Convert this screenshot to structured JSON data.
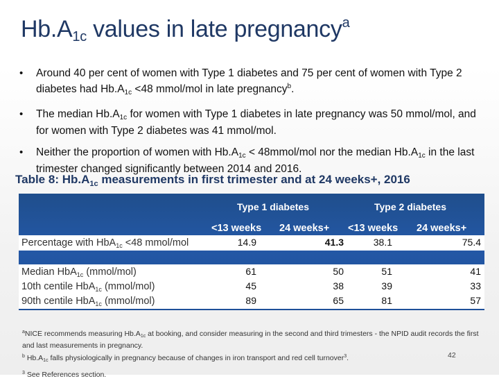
{
  "title": {
    "main": "Hb.A",
    "sub": "1c",
    "rest": " values in late pregnancy",
    "sup": "a"
  },
  "bullets": [
    {
      "parts": [
        "Around 40 per cent of women with Type 1 diabetes and 75 per cent of women with Type 2 diabetes had Hb.A",
        "1c",
        " <48 mmol/mol in late pregnancy",
        "b",
        "."
      ]
    },
    {
      "parts": [
        "The median Hb.A",
        "1c",
        " for women with Type 1 diabetes in late pregnancy was 50 mmol/mol, and for women with Type 2 diabetes was 41 mmol/mol."
      ]
    },
    {
      "parts": [
        "Neither the proportion of women with Hb.A",
        "1c",
        " < 48mmol/mol nor the median Hb.A",
        "1c",
        " in the last trimester changed significantly between 2014 and 2016."
      ]
    }
  ],
  "table_title": {
    "pre": "Table 8: Hb.A",
    "sub": "1c",
    "post": " measurements in first trimester and at 24 weeks+, 2016"
  },
  "table": {
    "group_headers": [
      "Type 1 diabetes",
      "Type 2 diabetes"
    ],
    "col_headers": [
      "<13 weeks",
      "24 weeks+",
      "<13 weeks",
      "24 weeks+"
    ],
    "rows": [
      {
        "label_pre": "Percentage with HbA",
        "label_sub": "1c",
        "label_post": " <48 mmol/mol",
        "values": [
          "14.9",
          "41.3",
          "38.1",
          "75.4"
        ]
      },
      {
        "label_pre": "Median HbA",
        "label_sub": "1c",
        "label_post": " (mmol/mol)",
        "values": [
          "61",
          "50",
          "51",
          "41"
        ]
      },
      {
        "label_pre": "10th centile HbA",
        "label_sub": "1c",
        "label_post": " (mmol/mol)",
        "values": [
          "45",
          "38",
          "39",
          "33"
        ]
      },
      {
        "label_pre": "90th centile HbA",
        "label_sub": "1c",
        "label_post": " (mmol/mol)",
        "values": [
          "89",
          "65",
          "81",
          "57"
        ]
      }
    ]
  },
  "footnotes": {
    "a": {
      "mark": "a",
      "pre": "NICE recommends measuring Hb.A",
      "sub": "1c",
      "post": " at booking, and consider measuring in the second and third trimesters - the NPID audit records the first and last measurements in pregnancy."
    },
    "b": {
      "mark": "b",
      "pre": " Hb.A",
      "sub": "1c",
      "post": " falls physiologically in pregnancy because of changes in iron transport and red cell turnover",
      "sup": "3",
      "end": "."
    },
    "c": {
      "mark": "3",
      "text": " See References section."
    }
  },
  "page_number": "42"
}
